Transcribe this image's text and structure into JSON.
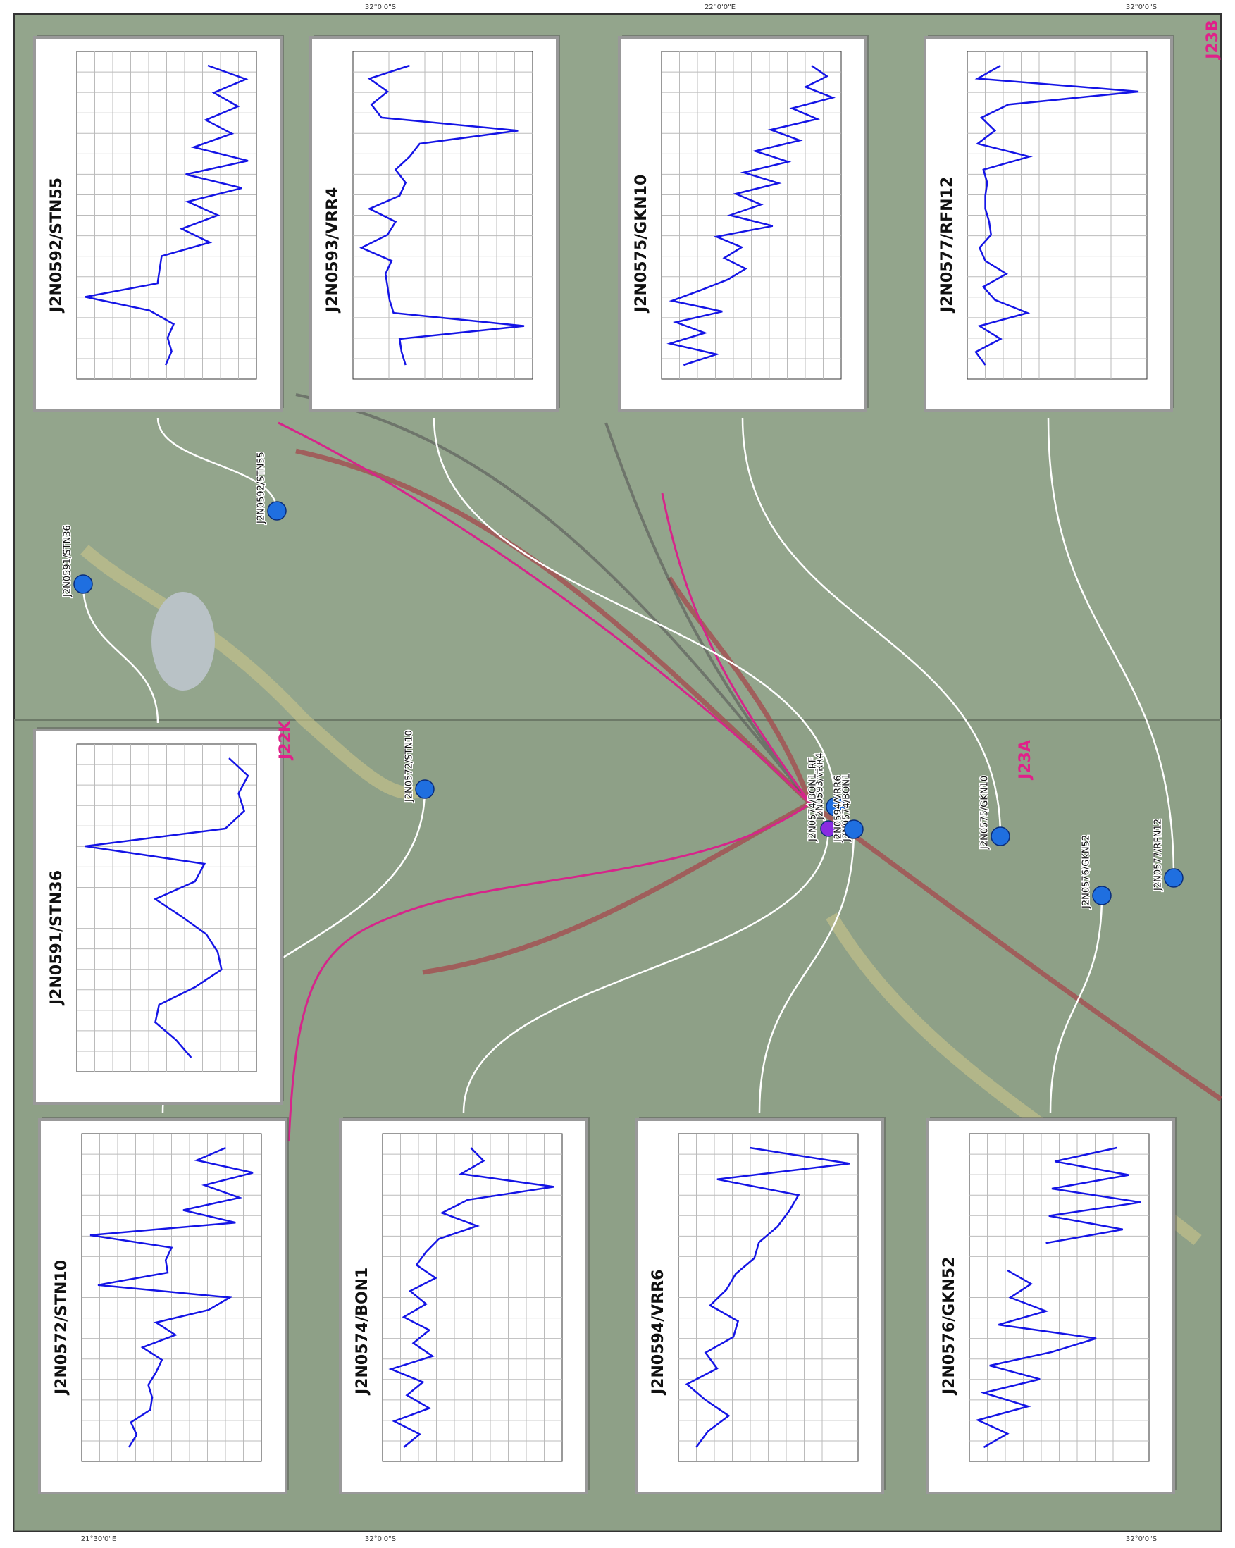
{
  "map": {
    "sheets": [
      "J22K",
      "J23A",
      "J23B"
    ],
    "coordinates": [
      "32°0'0\"S",
      "32°0'0\"S",
      "22°0'0\"E",
      "21°30'0\"E",
      "32°0'0\"S",
      "32°0'0\"S"
    ],
    "stations": [
      "J2N0591/STN36",
      "J2N0592/STN55",
      "J2N0572/STN10",
      "J2N0593/VRR4",
      "J2N0574/BON1_RF",
      "J2N0574/BON1",
      "J2N0594/VRR6",
      "J2N0575/GKN10",
      "J2N0576/GKN52",
      "J2N0577/RFN12"
    ],
    "insets": [
      {
        "title": "J2N0592/STN55",
        "values": [
          5,
          5.3,
          5.1,
          5.4,
          4.2,
          1,
          4.6,
          4.7,
          4.8,
          7.2,
          5.8,
          7.6,
          6.1,
          8.8,
          6,
          9.1,
          6.4,
          8.3,
          7,
          8.6,
          7.4,
          9,
          7.1
        ]
      },
      {
        "title": "J2N0593/VRR4",
        "values": [
          3.4,
          3.2,
          3.1,
          9.3,
          2.8,
          2.6,
          2.5,
          2.4,
          2.7,
          1.2,
          2.5,
          2.9,
          1.6,
          3.1,
          3.4,
          2.9,
          3.6,
          4.1,
          9,
          2.2,
          1.7,
          2.5,
          1.6,
          3.6
        ]
      },
      {
        "title": "J2N0575/GKN10",
        "values": [
          1.5,
          3.2,
          0.8,
          2.6,
          1.1,
          3.5,
          0.9,
          2.4,
          3.8,
          4.7,
          3.6,
          4.5,
          3.2,
          6.1,
          3.9,
          5.5,
          4.2,
          6.4,
          4.6,
          6.9,
          5.2,
          7.5,
          6,
          8.4,
          7.1,
          9.2,
          7.8,
          8.9,
          8.1
        ]
      },
      {
        "title": "J2N0577/RFN12",
        "values": [
          1.6,
          1.1,
          2.4,
          1.3,
          3.8,
          2.1,
          1.5,
          2.7,
          1.6,
          1.3,
          1.9,
          1.8,
          1.6,
          1.6,
          1.7,
          1.5,
          3.9,
          1.2,
          2.1,
          1.4,
          2.8,
          9.6,
          1.2,
          2.4
        ]
      },
      {
        "title": "J2N0591/STN36",
        "values": [
          6.1,
          5.3,
          4.2,
          4.4,
          6.3,
          7.7,
          7.5,
          6.9,
          5.6,
          4.2,
          6.3,
          6.8,
          0.5,
          7.9,
          8.9,
          8.6,
          9.1,
          8.1
        ]
      },
      {
        "title": "J2N0572/STN10",
        "values": [
          2.2,
          2.6,
          2.3,
          3.3,
          3.4,
          3.2,
          3.6,
          3.9,
          2.9,
          4.6,
          3.6,
          6.3,
          7.4,
          0.6,
          4.2,
          4.1,
          4.4,
          0.2,
          7.7,
          5,
          7.9,
          6.1,
          8.6,
          5.7,
          7.2
        ]
      },
      {
        "title": "J2N0574/BON1",
        "values": [
          4.5,
          5,
          4.2,
          5.3,
          4.6,
          5.1,
          4.1,
          5.4,
          4.8,
          5.3,
          4.5,
          5.2,
          4.7,
          5.5,
          4.9,
          5.2,
          5.6,
          6.8,
          5.7,
          6.5,
          9.2,
          6.3,
          7,
          6.6
        ]
      },
      {
        "title": "J2N0594/VRR6",
        "values": [
          1.8,
          2.3,
          3.2,
          2.2,
          1.4,
          2.7,
          2.2,
          3.4,
          3.6,
          2.4,
          3.1,
          3.5,
          4.3,
          4.5,
          5.3,
          5.8,
          6.2,
          2.7,
          8.4,
          4.1
        ]
      },
      {
        "title": "J2N0576/GKN52",
        "values": [
          4,
          4.8,
          3.8,
          5.5,
          4,
          5.9,
          4.2,
          6.3,
          7.8,
          4.5,
          6.1,
          4.9,
          5.6,
          4.8,
          null,
          6.1,
          8.7,
          6.2,
          9.3,
          6.3,
          8.9,
          6.4,
          8.5
        ]
      }
    ]
  }
}
